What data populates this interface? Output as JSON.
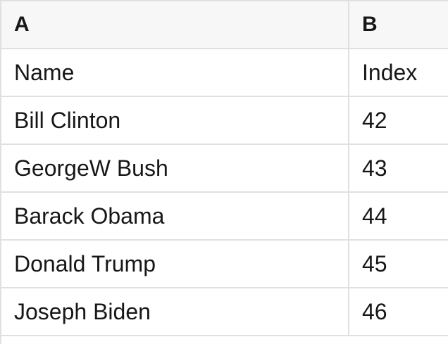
{
  "table": {
    "columns": [
      {
        "label": "A"
      },
      {
        "label": "B"
      }
    ],
    "rows": [
      {
        "a": "Name",
        "b": "Index"
      },
      {
        "a": "Bill Clinton",
        "b": "42"
      },
      {
        "a": "GeorgeW Bush",
        "b": "43"
      },
      {
        "a": "Barack Obama",
        "b": "44"
      },
      {
        "a": "Donald Trump",
        "b": "45"
      },
      {
        "a": "Joseph Biden",
        "b": "46"
      }
    ],
    "colors": {
      "header_bg": "#f7f7f7",
      "border": "#e0e0e0",
      "text": "#171717",
      "row_bg": "#ffffff"
    }
  }
}
